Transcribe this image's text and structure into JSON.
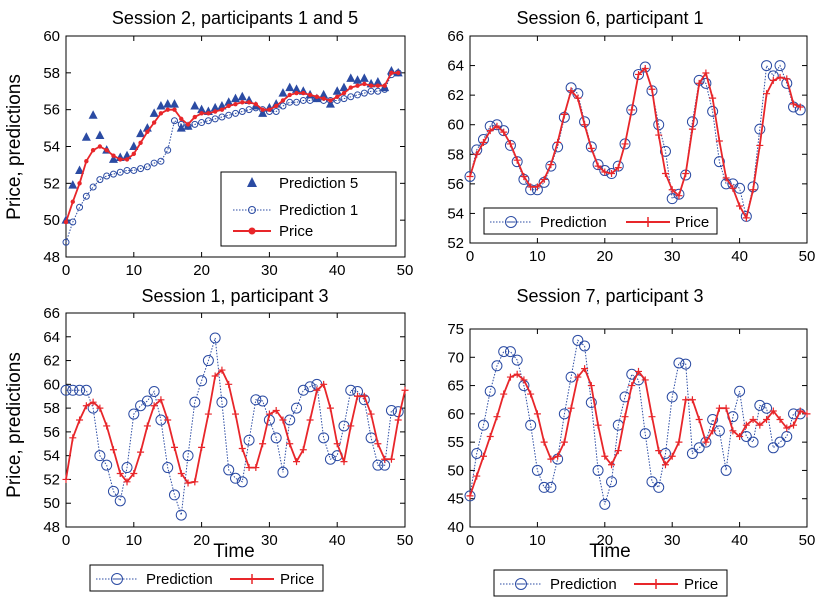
{
  "chart_data": [
    {
      "type": "line",
      "title": "Session 2, participants 1 and 5",
      "xlabel": "",
      "ylabel": "Price, predictions",
      "xlim": [
        0,
        50
      ],
      "ylim": [
        48,
        60
      ],
      "xticks": [
        "0",
        "10",
        "20",
        "30",
        "40",
        "50"
      ],
      "yticks": [
        "48",
        "50",
        "52",
        "54",
        "56",
        "58",
        "60"
      ],
      "legend_position": "bottom-right",
      "grid": false,
      "series": [
        {
          "name": "Prediction 5",
          "style": "triangle",
          "color": "#2b4ba3",
          "x": [
            0,
            1,
            2,
            3,
            4,
            5,
            6,
            7,
            8,
            9,
            10,
            11,
            12,
            13,
            14,
            15,
            16,
            17,
            18,
            19,
            20,
            21,
            22,
            23,
            24,
            25,
            26,
            27,
            28,
            29,
            30,
            31,
            32,
            33,
            34,
            35,
            36,
            37,
            38,
            39,
            40,
            41,
            42,
            43,
            44,
            45,
            46,
            47,
            48,
            49
          ],
          "y": [
            50.0,
            51.9,
            52.7,
            54.5,
            55.7,
            54.6,
            53.8,
            53.3,
            53.4,
            53.5,
            54.0,
            54.7,
            55.0,
            55.8,
            56.2,
            56.3,
            56.3,
            55.0,
            55.1,
            56.2,
            56.0,
            55.9,
            56.1,
            56.2,
            56.4,
            56.6,
            56.7,
            56.5,
            56.2,
            55.8,
            56.1,
            56.3,
            56.9,
            57.2,
            57.1,
            57.0,
            56.8,
            56.6,
            56.8,
            56.3,
            57.0,
            57.2,
            57.7,
            57.6,
            57.7,
            57.4,
            57.5,
            57.2,
            58.1,
            58.0
          ]
        },
        {
          "name": "Prediction 1",
          "style": "dotted-circle",
          "color": "#2b4ba3",
          "x": [
            0,
            1,
            2,
            3,
            4,
            5,
            6,
            7,
            8,
            9,
            10,
            11,
            12,
            13,
            14,
            15,
            16,
            17,
            18,
            19,
            20,
            21,
            22,
            23,
            24,
            25,
            26,
            27,
            28,
            29,
            30,
            31,
            32,
            33,
            34,
            35,
            36,
            37,
            38,
            39,
            40,
            41,
            42,
            43,
            44,
            45,
            46,
            47,
            48,
            49
          ],
          "y": [
            48.8,
            49.9,
            50.7,
            51.3,
            51.8,
            52.2,
            52.4,
            52.5,
            52.6,
            52.7,
            52.7,
            52.8,
            52.9,
            53.1,
            53.2,
            53.8,
            55.4,
            55.2,
            55.1,
            55.2,
            55.3,
            55.4,
            55.5,
            55.6,
            55.7,
            55.8,
            55.9,
            56.0,
            56.1,
            56.0,
            55.9,
            55.9,
            56.2,
            56.4,
            56.4,
            56.5,
            56.5,
            56.6,
            56.5,
            56.5,
            56.5,
            56.6,
            56.7,
            56.8,
            56.9,
            57.0,
            57.0,
            57.1,
            57.9,
            58.0
          ]
        },
        {
          "name": "Price",
          "style": "solid-dot",
          "color": "#e8262a",
          "x": [
            0,
            1,
            2,
            3,
            4,
            5,
            6,
            7,
            8,
            9,
            10,
            11,
            12,
            13,
            14,
            15,
            16,
            17,
            18,
            19,
            20,
            21,
            22,
            23,
            24,
            25,
            26,
            27,
            28,
            29,
            30,
            31,
            32,
            33,
            34,
            35,
            36,
            37,
            38,
            39,
            40,
            41,
            42,
            43,
            44,
            45,
            46,
            47,
            48,
            49
          ],
          "y": [
            49.9,
            51.0,
            52.0,
            53.2,
            53.8,
            54.0,
            53.8,
            53.5,
            53.3,
            53.3,
            53.6,
            54.2,
            54.8,
            55.3,
            55.8,
            56.0,
            56.0,
            55.5,
            55.2,
            55.6,
            55.8,
            55.8,
            55.9,
            56.0,
            56.2,
            56.3,
            56.4,
            56.4,
            56.3,
            56.0,
            56.0,
            56.2,
            56.5,
            56.8,
            56.9,
            56.9,
            56.8,
            56.7,
            56.6,
            56.5,
            56.7,
            56.9,
            57.2,
            57.3,
            57.4,
            57.3,
            57.3,
            57.3,
            58.0,
            58.0
          ]
        }
      ]
    },
    {
      "type": "line",
      "title": "Session 6, participant 1",
      "xlabel": "",
      "ylabel": "",
      "xlim": [
        0,
        50
      ],
      "ylim": [
        52,
        66
      ],
      "xticks": [
        "0",
        "10",
        "20",
        "30",
        "40",
        "50"
      ],
      "yticks": [
        "52",
        "54",
        "56",
        "58",
        "60",
        "62",
        "64",
        "66"
      ],
      "legend_position": "bottom",
      "grid": false,
      "series": [
        {
          "name": "Prediction",
          "style": "dotted-circle",
          "color": "#2b4ba3",
          "x": [
            0,
            1,
            2,
            3,
            4,
            5,
            6,
            7,
            8,
            9,
            10,
            11,
            12,
            13,
            14,
            15,
            16,
            17,
            18,
            19,
            20,
            21,
            22,
            23,
            24,
            25,
            26,
            27,
            28,
            29,
            30,
            31,
            32,
            33,
            34,
            35,
            36,
            37,
            38,
            39,
            40,
            41,
            42,
            43,
            44,
            45,
            46,
            47,
            48,
            49
          ],
          "y": [
            56.5,
            58.3,
            59.0,
            59.9,
            60.0,
            59.6,
            58.6,
            57.5,
            56.3,
            55.6,
            55.6,
            56.1,
            57.2,
            58.5,
            60.5,
            62.5,
            62.1,
            60.2,
            58.5,
            57.3,
            56.9,
            56.7,
            57.2,
            58.7,
            61.0,
            63.4,
            63.9,
            62.3,
            60.0,
            58.2,
            55.0,
            55.3,
            56.6,
            60.2,
            63.0,
            62.8,
            60.9,
            57.5,
            56.0,
            56.0,
            55.7,
            53.8,
            55.8,
            59.7,
            64.0,
            63.3,
            64.0,
            62.8,
            61.2,
            61.0
          ]
        },
        {
          "name": "Price",
          "style": "solid-plus",
          "color": "#e8262a",
          "x": [
            0,
            1,
            2,
            3,
            4,
            5,
            6,
            7,
            8,
            9,
            10,
            11,
            12,
            13,
            14,
            15,
            16,
            17,
            18,
            19,
            20,
            21,
            22,
            23,
            24,
            25,
            26,
            27,
            28,
            29,
            30,
            31,
            32,
            33,
            34,
            35,
            36,
            37,
            38,
            39,
            40,
            41,
            42,
            43,
            44,
            45,
            46,
            47,
            48,
            49
          ],
          "y": [
            56.5,
            58.0,
            58.8,
            59.6,
            59.9,
            59.5,
            58.7,
            57.6,
            56.5,
            55.8,
            55.8,
            56.3,
            57.3,
            58.8,
            60.7,
            62.3,
            61.8,
            60.0,
            58.4,
            57.2,
            56.8,
            56.7,
            57.1,
            58.7,
            61.0,
            63.4,
            63.8,
            62.4,
            59.3,
            56.7,
            55.6,
            55.2,
            56.7,
            59.7,
            62.8,
            63.5,
            61.8,
            58.9,
            56.4,
            55.7,
            54.5,
            53.7,
            55.6,
            58.6,
            62.1,
            63.0,
            63.2,
            63.1,
            61.4,
            61.2
          ]
        }
      ]
    },
    {
      "type": "line",
      "title": "Session 1, participant 3",
      "xlabel": "Time",
      "ylabel": "Price, predictions",
      "xlim": [
        0,
        50
      ],
      "ylim": [
        48,
        66
      ],
      "xticks": [
        "0",
        "10",
        "20",
        "30",
        "40",
        "50"
      ],
      "yticks": [
        "48",
        "50",
        "52",
        "54",
        "56",
        "58",
        "60",
        "62",
        "64",
        "66"
      ],
      "legend_position": "below",
      "grid": false,
      "series": [
        {
          "name": "Prediction",
          "style": "dotted-circle",
          "color": "#2b4ba3",
          "x": [
            0,
            1,
            2,
            3,
            4,
            5,
            6,
            7,
            8,
            9,
            10,
            11,
            12,
            13,
            14,
            15,
            16,
            17,
            18,
            19,
            20,
            21,
            22,
            23,
            24,
            25,
            26,
            27,
            28,
            29,
            30,
            31,
            32,
            33,
            34,
            35,
            36,
            37,
            38,
            39,
            40,
            41,
            42,
            43,
            44,
            45,
            46,
            47,
            48,
            49
          ],
          "y": [
            59.5,
            59.5,
            59.5,
            59.5,
            58.0,
            54.0,
            53.2,
            51.0,
            50.2,
            53.0,
            57.5,
            58.2,
            58.6,
            59.4,
            57.0,
            53.0,
            50.7,
            49.0,
            54.0,
            58.5,
            60.3,
            62.0,
            63.9,
            58.5,
            52.8,
            52.1,
            51.8,
            55.3,
            58.7,
            58.6,
            57.0,
            55.5,
            52.6,
            57.0,
            58.0,
            59.5,
            59.8,
            60.0,
            55.5,
            53.7,
            54.0,
            56.5,
            59.5,
            59.4,
            58.7,
            55.5,
            53.2,
            53.2,
            57.8,
            57.7
          ]
        },
        {
          "name": "Price",
          "style": "solid-plus",
          "color": "#e8262a",
          "x": [
            0,
            1,
            2,
            3,
            4,
            5,
            6,
            7,
            8,
            9,
            10,
            11,
            12,
            13,
            14,
            15,
            16,
            17,
            18,
            19,
            20,
            21,
            22,
            23,
            24,
            25,
            26,
            27,
            28,
            29,
            30,
            31,
            32,
            33,
            34,
            35,
            36,
            37,
            38,
            39,
            40,
            41,
            42,
            43,
            44,
            45,
            46,
            47,
            48,
            49,
            50
          ],
          "y": [
            52.0,
            55.5,
            57.0,
            58.2,
            58.5,
            58.0,
            56.5,
            54.5,
            52.5,
            51.8,
            52.5,
            54.3,
            56.5,
            58.2,
            58.7,
            57.0,
            54.7,
            52.5,
            51.7,
            51.8,
            54.7,
            57.5,
            60.7,
            61.2,
            60.0,
            57.5,
            54.6,
            53.0,
            53.0,
            55.0,
            57.5,
            57.8,
            57.0,
            55.0,
            53.5,
            54.5,
            57.0,
            59.5,
            60.0,
            58.0,
            55.0,
            53.5,
            56.5,
            59.0,
            59.0,
            57.5,
            55.0,
            53.7,
            53.7,
            57.0,
            59.5
          ]
        }
      ]
    },
    {
      "type": "line",
      "title": "Session 7, participant 3",
      "xlabel": "Time",
      "ylabel": "",
      "xlim": [
        0,
        50
      ],
      "ylim": [
        40,
        75
      ],
      "xticks": [
        "0",
        "10",
        "20",
        "30",
        "40",
        "50"
      ],
      "yticks": [
        "40",
        "45",
        "50",
        "55",
        "60",
        "65",
        "70",
        "75"
      ],
      "legend_position": "below",
      "grid": false,
      "series": [
        {
          "name": "Prediction",
          "style": "dotted-circle",
          "color": "#2b4ba3",
          "x": [
            0,
            1,
            2,
            3,
            4,
            5,
            6,
            7,
            8,
            9,
            10,
            11,
            12,
            13,
            14,
            15,
            16,
            17,
            18,
            19,
            20,
            21,
            22,
            23,
            24,
            25,
            26,
            27,
            28,
            29,
            30,
            31,
            32,
            33,
            34,
            35,
            36,
            37,
            38,
            39,
            40,
            41,
            42,
            43,
            44,
            45,
            46,
            47,
            48,
            49
          ],
          "y": [
            45.5,
            53.0,
            58.0,
            64.0,
            68.5,
            71.0,
            71.0,
            69.5,
            65.0,
            58.0,
            50.0,
            47.0,
            47.0,
            52.0,
            60.0,
            66.5,
            73.0,
            72.0,
            62.0,
            50.0,
            44.0,
            48.0,
            58.0,
            63.0,
            67.0,
            66.0,
            56.5,
            48.0,
            47.0,
            53.0,
            63.0,
            69.0,
            68.8,
            53.0,
            54.0,
            55.0,
            59.0,
            57.0,
            50.0,
            59.5,
            64.0,
            56.0,
            55.0,
            61.5,
            61.0,
            54.0,
            55.0,
            56.0,
            60.0,
            60.0
          ]
        },
        {
          "name": "Price",
          "style": "solid-plus",
          "color": "#e8262a",
          "x": [
            0,
            1,
            2,
            3,
            4,
            5,
            6,
            7,
            8,
            9,
            10,
            11,
            12,
            13,
            14,
            15,
            16,
            17,
            18,
            19,
            20,
            21,
            22,
            23,
            24,
            25,
            26,
            27,
            28,
            29,
            30,
            31,
            32,
            33,
            34,
            35,
            36,
            37,
            38,
            39,
            40,
            41,
            42,
            43,
            44,
            45,
            46,
            47,
            48,
            49,
            50
          ],
          "y": [
            45.5,
            49.0,
            52.5,
            56.0,
            59.5,
            63.5,
            66.5,
            67.0,
            66.0,
            63.5,
            60.0,
            55.0,
            52.0,
            52.5,
            55.0,
            61.0,
            66.5,
            68.0,
            65.0,
            58.0,
            52.5,
            51.0,
            53.5,
            59.5,
            65.0,
            67.5,
            66.0,
            59.5,
            53.5,
            51.0,
            52.5,
            55.0,
            62.5,
            62.5,
            59.0,
            55.0,
            57.0,
            61.0,
            61.0,
            57.0,
            56.0,
            58.0,
            59.0,
            58.0,
            59.0,
            60.5,
            59.0,
            57.5,
            58.0,
            60.5,
            60.0
          ]
        }
      ]
    }
  ]
}
